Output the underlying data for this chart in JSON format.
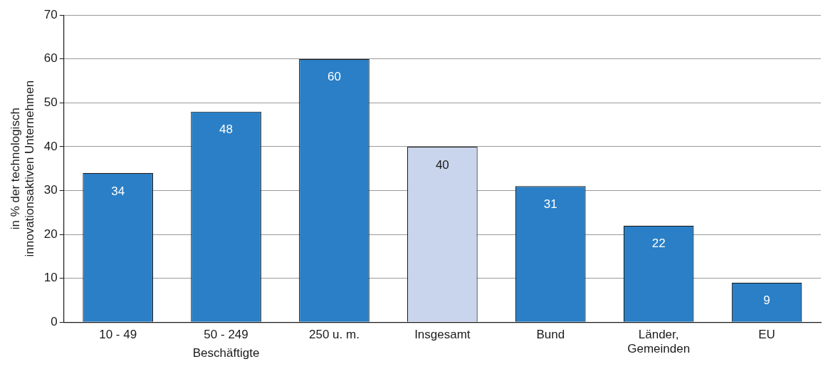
{
  "chart_data": {
    "type": "bar",
    "categories": [
      "10 - 49",
      "50 - 249",
      "250 u. m.",
      "Insgesamt",
      "Bund",
      "Länder, Gemeinden",
      "EU"
    ],
    "values": [
      34,
      48,
      60,
      40,
      31,
      22,
      9
    ],
    "colors": [
      "#2a7fc6",
      "#2a7fc6",
      "#2a7fc6",
      "#c9d5ec",
      "#2a7fc6",
      "#2a7fc6",
      "#2a7fc6"
    ],
    "ylabel": "in % der technologisch innovationsaktiven Unternehmen",
    "ylim": [
      0,
      70
    ],
    "yticks": [
      0,
      10,
      20,
      30,
      40,
      50,
      60,
      70
    ],
    "grid": "y",
    "legend": false,
    "data_labels": true,
    "annotations": [
      "Beschäftigte"
    ]
  }
}
